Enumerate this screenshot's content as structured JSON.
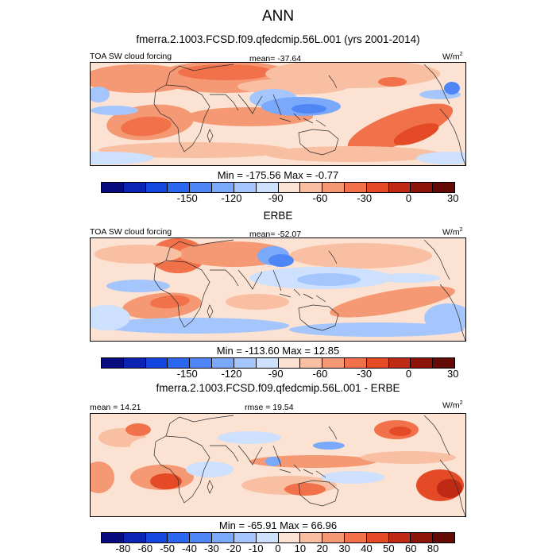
{
  "chart_data": {
    "type": "contour-map",
    "title": "ANN",
    "panels": [
      {
        "title": "fmerra.2.1003.FCSD.f09.qfedcmip.56L.001 (yrs 2001-2014)",
        "variable": "TOA SW cloud forcing",
        "stat_text": "mean= -37.64",
        "units_base": "W/m",
        "units_exp": "2",
        "minmax_text": "Min = -175.56 Max =  -0.77",
        "colorbar_ticks": [
          "-150",
          "-120",
          "-90",
          "-60",
          "-30",
          "0",
          "30"
        ]
      },
      {
        "title": "ERBE",
        "variable": "TOA SW cloud forcing",
        "stat_text": "mean= -52.07",
        "units_base": "W/m",
        "units_exp": "2",
        "minmax_text": "Min = -113.60 Max =  12.85",
        "colorbar_ticks": [
          "-150",
          "-120",
          "-90",
          "-60",
          "-30",
          "0",
          "30"
        ]
      },
      {
        "title": "fmerra.2.1003.FCSD.f09.qfedcmip.56L.001 - ERBE",
        "stat_left": "mean =  14.21",
        "stat_center": "rmse =  19.54",
        "units_base": "W/m",
        "units_exp": "2",
        "minmax_text": "Min = -65.91 Max =  66.96",
        "colorbar_ticks": [
          "-80",
          "-60",
          "-50",
          "-40",
          "-30",
          "-20",
          "-10",
          "0",
          "10",
          "20",
          "30",
          "40",
          "50",
          "60",
          "80"
        ]
      }
    ]
  },
  "colors": {
    "abs_palette": [
      "#080c7e",
      "#0c24b4",
      "#1446e0",
      "#2a66f0",
      "#4f86f6",
      "#7aa8fa",
      "#a5c6fc",
      "#cde0fd",
      "#fbe2d2",
      "#f8bfa2",
      "#f59874",
      "#f1724a",
      "#e44a26",
      "#bf2a14",
      "#8c1408",
      "#650a04"
    ],
    "diff_palette": [
      "#080c7e",
      "#0c24b4",
      "#1446e0",
      "#2a66f0",
      "#4f86f6",
      "#7aa8fa",
      "#a5c6fc",
      "#cde0fd",
      "#fbe2d2",
      "#f8bfa2",
      "#f59874",
      "#f1724a",
      "#e44a26",
      "#bf2a14",
      "#8c1408",
      "#650a04"
    ],
    "coast": "#2b2b2b"
  }
}
